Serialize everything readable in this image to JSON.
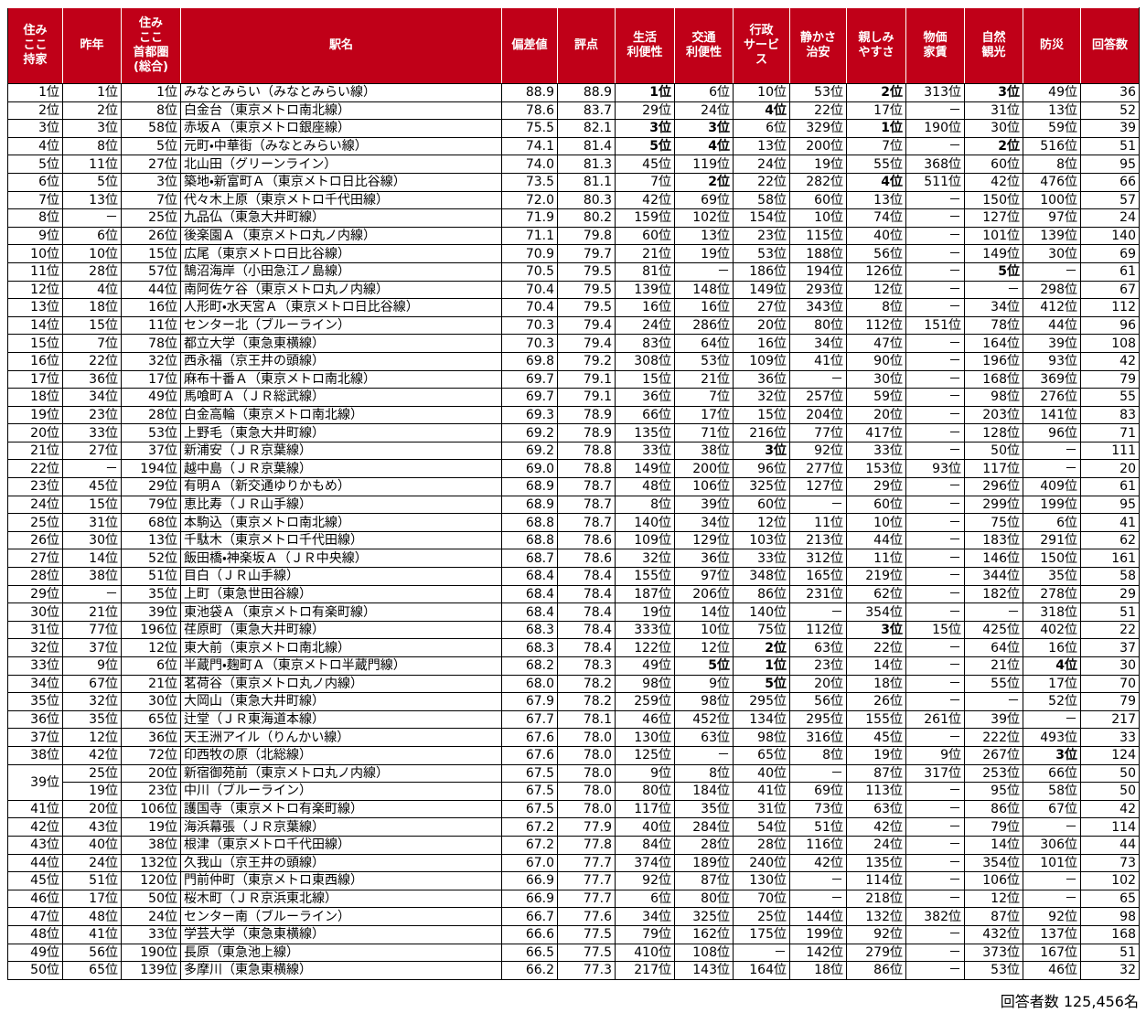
{
  "table": {
    "header": [
      "住み\nここ\n持家",
      "昨年",
      "住み\nここ\n首都圏\n(総合)",
      "駅名",
      "偏差値",
      "評点",
      "生活\n利便性",
      "交通\n利便性",
      "行政\nサービ\nス",
      "静かさ\n治安",
      "親しみ\nやすさ",
      "物価\n家賃",
      "自然\n観光",
      "防災",
      "回答数"
    ],
    "rows": [
      [
        "1位",
        "1位",
        "1位",
        "みなとみらい（みなとみらい線）",
        "88.9",
        "88.9",
        "1位",
        "6位",
        "10位",
        "53位",
        "2位",
        "313位",
        "3位",
        "49位",
        "36"
      ],
      [
        "2位",
        "2位",
        "8位",
        "白金台（東京メトロ南北線）",
        "78.6",
        "83.7",
        "29位",
        "24位",
        "4位",
        "22位",
        "17位",
        "－",
        "31位",
        "13位",
        "52"
      ],
      [
        "3位",
        "3位",
        "58位",
        "赤坂Ａ（東京メトロ銀座線）",
        "75.5",
        "82.1",
        "3位",
        "3位",
        "6位",
        "329位",
        "1位",
        "190位",
        "30位",
        "59位",
        "39"
      ],
      [
        "4位",
        "8位",
        "5位",
        "元町・中華街（みなとみらい線）",
        "74.1",
        "81.4",
        "5位",
        "4位",
        "13位",
        "200位",
        "7位",
        "－",
        "2位",
        "516位",
        "51"
      ],
      [
        "5位",
        "11位",
        "27位",
        "北山田（グリーンライン）",
        "74.0",
        "81.3",
        "45位",
        "119位",
        "24位",
        "19位",
        "55位",
        "368位",
        "60位",
        "8位",
        "95"
      ],
      [
        "6位",
        "5位",
        "3位",
        "築地・新富町Ａ（東京メトロ日比谷線）",
        "73.5",
        "81.1",
        "7位",
        "2位",
        "22位",
        "282位",
        "4位",
        "511位",
        "42位",
        "476位",
        "66"
      ],
      [
        "7位",
        "13位",
        "7位",
        "代々木上原（東京メトロ千代田線）",
        "72.0",
        "80.3",
        "42位",
        "69位",
        "58位",
        "60位",
        "13位",
        "－",
        "150位",
        "100位",
        "57"
      ],
      [
        "8位",
        "－",
        "25位",
        "九品仏（東急大井町線）",
        "71.9",
        "80.2",
        "159位",
        "102位",
        "154位",
        "10位",
        "74位",
        "－",
        "127位",
        "97位",
        "24"
      ],
      [
        "9位",
        "6位",
        "26位",
        "後楽園Ａ（東京メトロ丸ノ内線）",
        "71.1",
        "79.8",
        "60位",
        "13位",
        "23位",
        "115位",
        "40位",
        "－",
        "101位",
        "139位",
        "140"
      ],
      [
        "10位",
        "10位",
        "15位",
        "広尾（東京メトロ日比谷線）",
        "70.9",
        "79.7",
        "21位",
        "19位",
        "53位",
        "188位",
        "56位",
        "－",
        "149位",
        "30位",
        "69"
      ],
      [
        "11位",
        "28位",
        "57位",
        "鵠沼海岸（小田急江ノ島線）",
        "70.5",
        "79.5",
        "81位",
        "－",
        "186位",
        "194位",
        "126位",
        "－",
        "5位",
        "－",
        "61"
      ],
      [
        "12位",
        "4位",
        "44位",
        "南阿佐ケ谷（東京メトロ丸ノ内線）",
        "70.4",
        "79.5",
        "139位",
        "148位",
        "149位",
        "293位",
        "12位",
        "－",
        "－",
        "298位",
        "67"
      ],
      [
        "13位",
        "18位",
        "16位",
        "人形町・水天宮Ａ（東京メトロ日比谷線）",
        "70.4",
        "79.5",
        "16位",
        "16位",
        "27位",
        "343位",
        "8位",
        "－",
        "34位",
        "412位",
        "112"
      ],
      [
        "14位",
        "15位",
        "11位",
        "センター北（ブルーライン）",
        "70.3",
        "79.4",
        "24位",
        "286位",
        "20位",
        "80位",
        "112位",
        "151位",
        "78位",
        "44位",
        "96"
      ],
      [
        "15位",
        "7位",
        "78位",
        "都立大学（東急東横線）",
        "70.3",
        "79.4",
        "83位",
        "64位",
        "16位",
        "34位",
        "47位",
        "－",
        "164位",
        "39位",
        "108"
      ],
      [
        "16位",
        "22位",
        "32位",
        "西永福（京王井の頭線）",
        "69.8",
        "79.2",
        "308位",
        "53位",
        "109位",
        "41位",
        "90位",
        "－",
        "196位",
        "93位",
        "42"
      ],
      [
        "17位",
        "36位",
        "17位",
        "麻布十番Ａ（東京メトロ南北線）",
        "69.7",
        "79.1",
        "15位",
        "21位",
        "36位",
        "－",
        "30位",
        "－",
        "168位",
        "369位",
        "79"
      ],
      [
        "18位",
        "34位",
        "49位",
        "馬喰町Ａ（ＪＲ総武線）",
        "69.7",
        "79.1",
        "36位",
        "7位",
        "32位",
        "257位",
        "59位",
        "－",
        "98位",
        "276位",
        "55"
      ],
      [
        "19位",
        "23位",
        "28位",
        "白金高輪（東京メトロ南北線）",
        "69.3",
        "78.9",
        "66位",
        "17位",
        "15位",
        "204位",
        "20位",
        "－",
        "203位",
        "141位",
        "83"
      ],
      [
        "20位",
        "33位",
        "53位",
        "上野毛（東急大井町線）",
        "69.2",
        "78.9",
        "135位",
        "71位",
        "216位",
        "77位",
        "417位",
        "－",
        "128位",
        "96位",
        "71"
      ],
      [
        "21位",
        "27位",
        "37位",
        "新浦安（ＪＲ京葉線）",
        "69.2",
        "78.8",
        "33位",
        "38位",
        "3位",
        "92位",
        "33位",
        "－",
        "50位",
        "－",
        "111"
      ],
      [
        "22位",
        "－",
        "194位",
        "越中島（ＪＲ京葉線）",
        "69.0",
        "78.8",
        "149位",
        "200位",
        "96位",
        "277位",
        "153位",
        "93位",
        "117位",
        "－",
        "20"
      ],
      [
        "23位",
        "45位",
        "29位",
        "有明Ａ（新交通ゆりかもめ）",
        "68.9",
        "78.7",
        "48位",
        "106位",
        "325位",
        "127位",
        "29位",
        "－",
        "296位",
        "409位",
        "61"
      ],
      [
        "24位",
        "15位",
        "79位",
        "恵比寿（ＪＲ山手線）",
        "68.9",
        "78.7",
        "8位",
        "39位",
        "60位",
        "－",
        "60位",
        "－",
        "299位",
        "199位",
        "95"
      ],
      [
        "25位",
        "31位",
        "68位",
        "本駒込（東京メトロ南北線）",
        "68.8",
        "78.7",
        "140位",
        "34位",
        "12位",
        "11位",
        "10位",
        "－",
        "75位",
        "6位",
        "41"
      ],
      [
        "26位",
        "30位",
        "13位",
        "千駄木（東京メトロ千代田線）",
        "68.8",
        "78.6",
        "109位",
        "129位",
        "103位",
        "213位",
        "44位",
        "－",
        "183位",
        "291位",
        "62"
      ],
      [
        "27位",
        "14位",
        "52位",
        "飯田橋・神楽坂Ａ（ＪＲ中央線）",
        "68.7",
        "78.6",
        "32位",
        "36位",
        "33位",
        "312位",
        "11位",
        "－",
        "146位",
        "150位",
        "161"
      ],
      [
        "28位",
        "38位",
        "51位",
        "目白（ＪＲ山手線）",
        "68.4",
        "78.4",
        "155位",
        "97位",
        "348位",
        "165位",
        "219位",
        "－",
        "344位",
        "35位",
        "58"
      ],
      [
        "29位",
        "－",
        "35位",
        "上町（東急世田谷線）",
        "68.4",
        "78.4",
        "187位",
        "206位",
        "86位",
        "231位",
        "62位",
        "－",
        "182位",
        "278位",
        "29"
      ],
      [
        "30位",
        "21位",
        "39位",
        "東池袋Ａ（東京メトロ有楽町線）",
        "68.4",
        "78.4",
        "19位",
        "14位",
        "140位",
        "－",
        "354位",
        "－",
        "－",
        "318位",
        "51"
      ],
      [
        "31位",
        "77位",
        "196位",
        "荏原町（東急大井町線）",
        "68.3",
        "78.4",
        "333位",
        "10位",
        "75位",
        "112位",
        "3位",
        "15位",
        "425位",
        "402位",
        "22"
      ],
      [
        "32位",
        "37位",
        "12位",
        "東大前（東京メトロ南北線）",
        "68.3",
        "78.4",
        "122位",
        "12位",
        "2位",
        "63位",
        "22位",
        "－",
        "64位",
        "16位",
        "37"
      ],
      [
        "33位",
        "9位",
        "6位",
        "半蔵門・麹町Ａ（東京メトロ半蔵門線）",
        "68.2",
        "78.3",
        "49位",
        "5位",
        "1位",
        "23位",
        "14位",
        "－",
        "21位",
        "4位",
        "30"
      ],
      [
        "34位",
        "67位",
        "21位",
        "茗荷谷（東京メトロ丸ノ内線）",
        "68.0",
        "78.2",
        "98位",
        "9位",
        "5位",
        "20位",
        "18位",
        "－",
        "55位",
        "17位",
        "70"
      ],
      [
        "35位",
        "32位",
        "30位",
        "大岡山（東急大井町線）",
        "67.9",
        "78.2",
        "259位",
        "98位",
        "295位",
        "56位",
        "26位",
        "－",
        "－",
        "52位",
        "79"
      ],
      [
        "36位",
        "35位",
        "65位",
        "辻堂（ＪＲ東海道本線）",
        "67.7",
        "78.1",
        "46位",
        "452位",
        "134位",
        "295位",
        "155位",
        "261位",
        "39位",
        "－",
        "217"
      ],
      [
        "37位",
        "12位",
        "36位",
        "天王洲アイル（りんかい線）",
        "67.6",
        "78.0",
        "130位",
        "63位",
        "98位",
        "316位",
        "45位",
        "－",
        "222位",
        "493位",
        "33"
      ],
      [
        "38位",
        "42位",
        "72位",
        "印西牧の原（北総線）",
        "67.6",
        "78.0",
        "125位",
        "－",
        "65位",
        "8位",
        "19位",
        "9位",
        "267位",
        "3位",
        "124"
      ],
      [
        "39位",
        "25位",
        "20位",
        "新宿御苑前（東京メトロ丸ノ内線）",
        "67.5",
        "78.0",
        "9位",
        "8位",
        "40位",
        "－",
        "87位",
        "317位",
        "253位",
        "66位",
        "50"
      ],
      [
        null,
        "19位",
        "23位",
        "中川（ブルーライン）",
        "67.5",
        "78.0",
        "80位",
        "184位",
        "41位",
        "69位",
        "113位",
        "－",
        "95位",
        "58位",
        "50"
      ],
      [
        "41位",
        "20位",
        "106位",
        "護国寺（東京メトロ有楽町線）",
        "67.5",
        "78.0",
        "117位",
        "35位",
        "31位",
        "73位",
        "63位",
        "－",
        "86位",
        "67位",
        "42"
      ],
      [
        "42位",
        "43位",
        "19位",
        "海浜幕張（ＪＲ京葉線）",
        "67.2",
        "77.9",
        "40位",
        "284位",
        "54位",
        "51位",
        "42位",
        "－",
        "79位",
        "－",
        "114"
      ],
      [
        "43位",
        "40位",
        "38位",
        "根津（東京メトロ千代田線）",
        "67.2",
        "77.8",
        "84位",
        "28位",
        "28位",
        "116位",
        "24位",
        "－",
        "14位",
        "306位",
        "44"
      ],
      [
        "44位",
        "24位",
        "132位",
        "久我山（京王井の頭線）",
        "67.0",
        "77.7",
        "374位",
        "189位",
        "240位",
        "42位",
        "135位",
        "－",
        "354位",
        "101位",
        "73"
      ],
      [
        "45位",
        "51位",
        "120位",
        "門前仲町（東京メトロ東西線）",
        "66.9",
        "77.7",
        "92位",
        "87位",
        "130位",
        "－",
        "114位",
        "－",
        "106位",
        "－",
        "102"
      ],
      [
        "46位",
        "17位",
        "50位",
        "桜木町（ＪＲ京浜東北線）",
        "66.9",
        "77.7",
        "6位",
        "80位",
        "70位",
        "－",
        "218位",
        "－",
        "12位",
        "－",
        "65"
      ],
      [
        "47位",
        "48位",
        "24位",
        "センター南（ブルーライン）",
        "66.7",
        "77.6",
        "34位",
        "325位",
        "25位",
        "144位",
        "132位",
        "382位",
        "87位",
        "92位",
        "98"
      ],
      [
        "48位",
        "41位",
        "33位",
        "学芸大学（東急東横線）",
        "66.6",
        "77.5",
        "79位",
        "162位",
        "175位",
        "199位",
        "92位",
        "－",
        "432位",
        "137位",
        "168"
      ],
      [
        "49位",
        "56位",
        "190位",
        "長原（東急池上線）",
        "66.5",
        "77.5",
        "410位",
        "108位",
        "－",
        "142位",
        "279位",
        "－",
        "373位",
        "167位",
        "51"
      ],
      [
        "50位",
        "65位",
        "139位",
        "多摩川（東急東横線）",
        "66.2",
        "77.3",
        "217位",
        "143位",
        "164位",
        "18位",
        "86位",
        "－",
        "53位",
        "46位",
        "32"
      ]
    ]
  },
  "footer": "回答者数 125,456名"
}
